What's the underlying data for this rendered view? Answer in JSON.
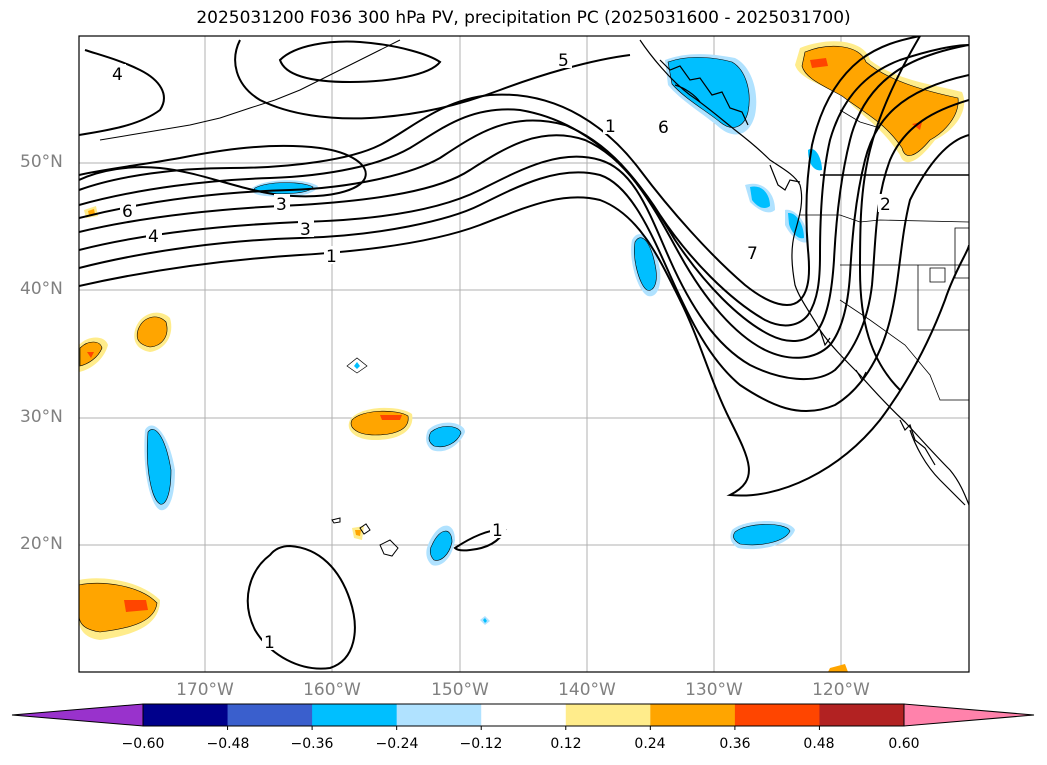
{
  "title": "2025031200 F036 300 hPa PV, precipitation PC (2025031600 - 2025031700)",
  "lat_labels": [
    "50°N",
    "40°N",
    "30°N",
    "20°N"
  ],
  "lon_labels": [
    "170°W",
    "160°W",
    "150°W",
    "140°W",
    "130°W",
    "120°W"
  ],
  "colorbar": {
    "tick_labels": [
      "−0.60",
      "−0.48",
      "−0.36",
      "−0.24",
      "−0.12",
      "0.12",
      "0.24",
      "0.36",
      "0.48",
      "0.60"
    ],
    "colors": [
      "#9932cc",
      "#00008b",
      "#3a5fcd",
      "#00bfff",
      "#b0e2ff",
      "#ffffff",
      "#ffec8b",
      "#ffa500",
      "#ff4500",
      "#b22222",
      "#ff82ab"
    ],
    "extend": "both"
  },
  "contour_labels": [
    "4",
    "5",
    "6",
    "6",
    "4",
    "3",
    "1",
    "1",
    "2",
    "3",
    "7",
    "1",
    "1"
  ],
  "colors": {
    "positive_fill": "#ffa500",
    "positive_light": "#ffec8b",
    "positive_core": "#ff4500",
    "negative_fill": "#00bfff",
    "negative_light": "#b0e2ff",
    "gridline": "#b0b0b0",
    "contour": "#000000"
  }
}
